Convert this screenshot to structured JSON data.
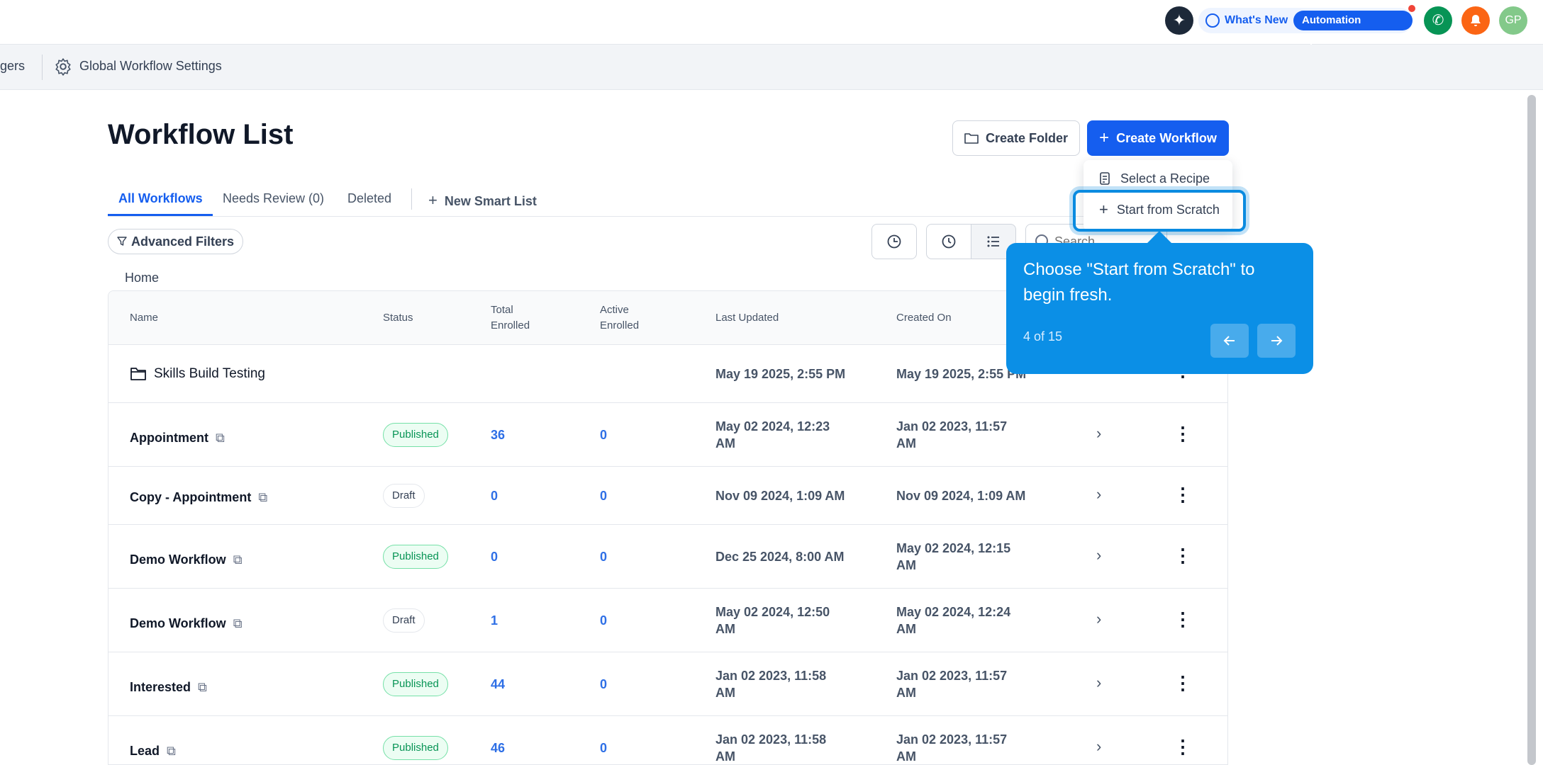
{
  "topbar": {
    "whats_new": "What's New",
    "automation_updates": "Automation Updates",
    "avatar_initials": "GP"
  },
  "subnav": {
    "truncated_item": "gers",
    "settings_label": "Global Workflow Settings"
  },
  "header": {
    "title": "Workflow List",
    "create_folder": "Create Folder",
    "create_workflow": "Create Workflow"
  },
  "dropdown": {
    "select_recipe": "Select a Recipe",
    "start_from_scratch": "Start from Scratch"
  },
  "tabs": {
    "all": "All Workflows",
    "needs_review": "Needs Review (0)",
    "deleted": "Deleted",
    "new_smart_list": "New Smart List"
  },
  "filters": {
    "advanced": "Advanced Filters",
    "search_placeholder": "Search"
  },
  "breadcrumb": "Home",
  "table": {
    "headers": {
      "name": "Name",
      "status": "Status",
      "total_1": "Total",
      "total_2": "Enrolled",
      "active_1": "Active",
      "active_2": "Enrolled",
      "last_updated": "Last Updated",
      "created_on": "Created On"
    },
    "folder": {
      "name": "Skills Build Testing",
      "last_updated": "May 19 2025, 2:55 PM",
      "created_on": "May 19 2025, 2:55 PM"
    },
    "rows": [
      {
        "name": "Appointment",
        "status": "Published",
        "total": "36",
        "active": "0",
        "updated_1": "May 02 2024, 12:23",
        "updated_2": "AM",
        "created_1": "Jan 02 2023, 11:57",
        "created_2": "AM"
      },
      {
        "name": "Copy - Appointment",
        "status": "Draft",
        "total": "0",
        "active": "0",
        "updated_1": "Nov 09 2024, 1:09 AM",
        "updated_2": "",
        "created_1": "Nov 09 2024, 1:09 AM",
        "created_2": ""
      },
      {
        "name": "Demo Workflow",
        "status": "Published",
        "total": "0",
        "active": "0",
        "updated_1": "Dec 25 2024, 8:00 AM",
        "updated_2": "",
        "created_1": "May 02 2024, 12:15",
        "created_2": "AM"
      },
      {
        "name": "Demo Workflow",
        "status": "Draft",
        "total": "1",
        "active": "0",
        "updated_1": "May 02 2024, 12:50",
        "updated_2": "AM",
        "created_1": "May 02 2024, 12:24",
        "created_2": "AM"
      },
      {
        "name": "Interested",
        "status": "Published",
        "total": "44",
        "active": "0",
        "updated_1": "Jan 02 2023, 11:58",
        "updated_2": "AM",
        "created_1": "Jan 02 2023, 11:57",
        "created_2": "AM"
      },
      {
        "name": "Lead",
        "status": "Published",
        "total": "46",
        "active": "0",
        "updated_1": "Jan 02 2023, 11:58",
        "updated_2": "AM",
        "created_1": "Jan 02 2023, 11:57",
        "created_2": "AM"
      }
    ]
  },
  "tooltip": {
    "text": "Choose \"Start from Scratch\" to begin fresh.",
    "step": "4 of 15"
  }
}
